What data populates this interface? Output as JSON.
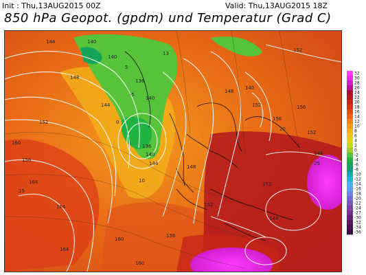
{
  "header": {
    "init": "Init : Thu,13AUG2015 00Z",
    "valid": "Valid: Thu,13AUG2015 18Z",
    "title": "850 hPa Geopot. (gpdm) und Temperatur (Grad C)"
  },
  "color_scale": {
    "labels": [
      "32",
      "30",
      "28",
      "26",
      "24",
      "22",
      "20",
      "18",
      "16",
      "14",
      "12",
      "10",
      "8",
      "6",
      "4",
      "2",
      "0",
      "-2",
      "-4",
      "-6",
      "-8",
      "-10",
      "-12",
      "-14",
      "-16",
      "-18",
      "-20",
      "-22",
      "-24",
      "-27",
      "-30",
      "-32",
      "-34",
      "-36"
    ],
    "colors": [
      "#ff3aff",
      "#ee2ae8",
      "#d21fcf",
      "#b8139e",
      "#a0102f",
      "#b3181d",
      "#c72418",
      "#db3416",
      "#e44a12",
      "#ec6414",
      "#f0821a",
      "#f39a1e",
      "#f3b019",
      "#eec51a",
      "#e2d51b",
      "#c4d71d",
      "#9fcf28",
      "#56c33a",
      "#20b342",
      "#13a35b",
      "#129a82",
      "#1ca8b0",
      "#25b7d6",
      "#45b3ee",
      "#5b9ff0",
      "#6a86e8",
      "#7668d8",
      "#8253c2",
      "#8040a8",
      "#73308f",
      "#652479",
      "#581964",
      "#4b1053",
      "#3f0a45"
    ]
  },
  "map": {
    "isolines_gpdm": [
      "136",
      "138",
      "140",
      "142",
      "144",
      "146",
      "148",
      "150",
      "152",
      "154",
      "156",
      "158",
      "160",
      "162",
      "164"
    ],
    "labels": [
      {
        "t": "140"
      },
      {
        "t": "144"
      },
      {
        "t": "140"
      },
      {
        "t": "13"
      },
      {
        "t": "148"
      },
      {
        "t": "136"
      },
      {
        "t": "140"
      },
      {
        "t": "144"
      },
      {
        "t": "152"
      },
      {
        "t": "136"
      },
      {
        "t": "140"
      },
      {
        "t": "144"
      },
      {
        "t": "148"
      },
      {
        "t": "152"
      },
      {
        "t": "156"
      },
      {
        "t": "160"
      },
      {
        "t": "164"
      },
      {
        "t": "164"
      },
      {
        "t": "160"
      },
      {
        "t": "156"
      },
      {
        "t": "152"
      },
      {
        "t": "148"
      },
      {
        "t": "152"
      },
      {
        "t": "156"
      },
      {
        "t": "160"
      },
      {
        "t": "164"
      },
      {
        "t": "152"
      },
      {
        "t": "156"
      },
      {
        "t": "152"
      },
      {
        "t": "148"
      },
      {
        "t": "144"
      },
      {
        "t": "140"
      },
      {
        "t": "5"
      },
      {
        "t": "10"
      },
      {
        "t": "15"
      },
      {
        "t": "20"
      },
      {
        "t": "25"
      },
      {
        "t": "0"
      },
      {
        "t": "-5"
      }
    ]
  }
}
